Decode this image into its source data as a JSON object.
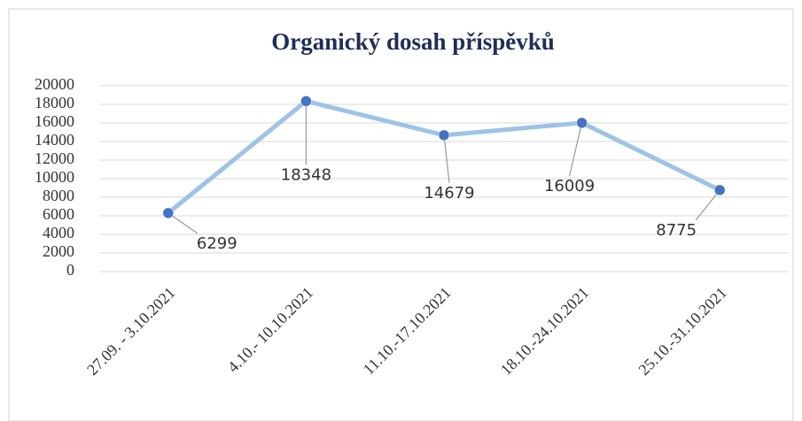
{
  "chart_data": {
    "type": "line",
    "title": "Organický dosah příspěvků",
    "categories": [
      "27.09. - 3.10.2021",
      "4.10.- 10.10.2021",
      "11.10.-17.10.2021",
      "18.10.-24.10.2021",
      "25.10.-31.10.2021"
    ],
    "series": [
      {
        "name": "Organický dosah",
        "color": "#9dc3e6",
        "marker_color": "#4472c4",
        "values": [
          6299,
          18348,
          14679,
          16009,
          8775
        ]
      }
    ],
    "ylim": [
      0,
      20000
    ],
    "yticks": [
      0,
      2000,
      4000,
      6000,
      8000,
      10000,
      12000,
      14000,
      16000,
      18000,
      20000
    ],
    "grid": true
  }
}
